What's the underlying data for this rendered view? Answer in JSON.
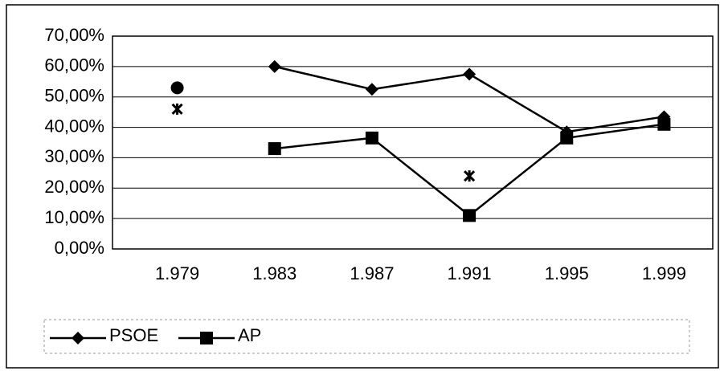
{
  "chart_data": {
    "type": "line",
    "categories": [
      "1.979",
      "1.983",
      "1.987",
      "1.991",
      "1.995",
      "1.999"
    ],
    "series": [
      {
        "name": "PSOE",
        "color": "#000000",
        "marker": "diamond",
        "values": [
          null,
          60,
          52.5,
          57.5,
          38.5,
          43.5
        ]
      },
      {
        "name": "AP",
        "color": "#000000",
        "marker": "square",
        "values": [
          null,
          33,
          36.5,
          11,
          36.5,
          41
        ]
      },
      {
        "color": "#000000",
        "marker": "circle",
        "values": [
          53,
          null,
          null,
          null,
          null,
          null
        ]
      },
      {
        "color": "#000000",
        "marker": "cross",
        "values": [
          46,
          null,
          null,
          24,
          null,
          null
        ]
      }
    ],
    "ylim": [
      0,
      70
    ],
    "yticks": [
      {
        "value": 0,
        "label": "0,00%"
      },
      {
        "value": 10,
        "label": "10,00%"
      },
      {
        "value": 20,
        "label": "20,00%"
      },
      {
        "value": 30,
        "label": "30,00%"
      },
      {
        "value": 40,
        "label": "40,00%"
      },
      {
        "value": 50,
        "label": "50,00%"
      },
      {
        "value": 60,
        "label": "60,00%"
      },
      {
        "value": 70,
        "label": "70,00%"
      }
    ],
    "grid": true,
    "legend": "bottom"
  }
}
